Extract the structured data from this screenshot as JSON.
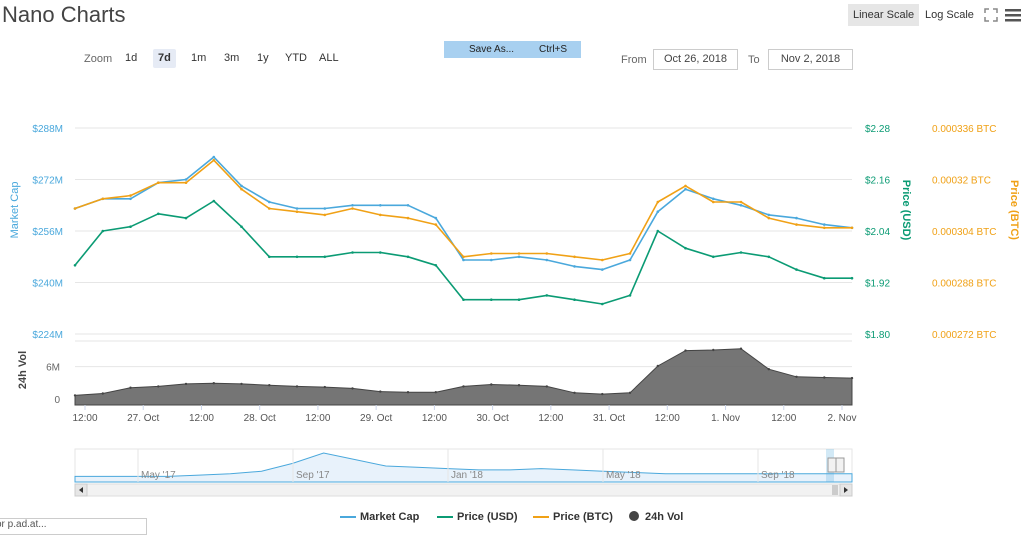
{
  "header": {
    "title": "Nano Charts",
    "linear_scale": "Linear Scale",
    "log_scale": "Log Scale",
    "fullscreen_icon": "fullscreen-icon",
    "menu_icon": "hamburger-menu-icon"
  },
  "toolbar": {
    "zoom_label": "Zoom",
    "zoom_options": [
      "1d",
      "7d",
      "1m",
      "3m",
      "1y",
      "YTD",
      "ALL"
    ],
    "active_zoom": "7d",
    "save_as": "Save As...",
    "save_shortcut": "Ctrl+S",
    "from_label": "From",
    "from_value": "Oct 26, 2018",
    "to_label": "To",
    "to_value": "Nov 2, 2018"
  },
  "colors": {
    "market_cap": "#4aa8dc",
    "price_usd": "#0b9b74",
    "price_btc": "#f0a116",
    "volume": "#555555"
  },
  "chart_data": {
    "type": "line",
    "title": "Nano Charts",
    "x_tick_labels": [
      "12:00",
      "27. Oct",
      "12:00",
      "28. Oct",
      "12:00",
      "29. Oct",
      "12:00",
      "30. Oct",
      "12:00",
      "31. Oct",
      "12:00",
      "1. Nov",
      "12:00",
      "2. Nov"
    ],
    "left_axis": {
      "label": "Market Cap",
      "ticks": [
        "$224M",
        "$240M",
        "$256M",
        "$272M",
        "$288M"
      ],
      "range": [
        224,
        288
      ]
    },
    "right_axis_usd": {
      "label": "Price (USD)",
      "ticks": [
        "$1.80",
        "$1.92",
        "$2.04",
        "$2.16",
        "$2.28"
      ],
      "range": [
        1.8,
        2.28
      ]
    },
    "right_axis_btc": {
      "label": "Price (BTC)",
      "ticks": [
        "0.000272 BTC",
        "0.000288 BTC",
        "0.000304 BTC",
        "0.00032 BTC",
        "0.000336 BTC"
      ],
      "range": [
        0.000272,
        0.000336
      ]
    },
    "volume_axis": {
      "label": "24h Vol",
      "ticks": [
        "0",
        "6M"
      ]
    },
    "time_index": [
      0,
      0.5,
      1,
      1.5,
      2,
      2.5,
      3,
      3.5,
      4,
      4.5,
      5,
      5.5,
      6,
      6.5,
      7,
      7.5,
      8,
      8.5,
      9,
      9.5,
      10,
      10.5,
      11,
      11.5,
      12,
      12.5,
      13,
      13.5,
      14
    ],
    "series": [
      {
        "name": "Market Cap",
        "axis": "left",
        "values": [
          263,
          266,
          266,
          271,
          272,
          279,
          270,
          265,
          263,
          263,
          264,
          264,
          264,
          260,
          247,
          247,
          248,
          247,
          245,
          244,
          247,
          262,
          269,
          266,
          264,
          261,
          260,
          258,
          257
        ]
      },
      {
        "name": "Price (USD)",
        "axis": "usd",
        "values": [
          1.96,
          2.04,
          2.05,
          2.08,
          2.07,
          2.11,
          2.05,
          1.98,
          1.98,
          1.98,
          1.99,
          1.99,
          1.98,
          1.96,
          1.88,
          1.88,
          1.88,
          1.89,
          1.88,
          1.87,
          1.89,
          2.04,
          2.0,
          1.98,
          1.99,
          1.98,
          1.95,
          1.93,
          1.93
        ]
      },
      {
        "name": "Price (BTC)",
        "axis": "btc",
        "values": [
          0.000311,
          0.000314,
          0.000315,
          0.000319,
          0.000319,
          0.000326,
          0.000317,
          0.000311,
          0.00031,
          0.000309,
          0.000311,
          0.000309,
          0.000308,
          0.000306,
          0.000296,
          0.000297,
          0.000297,
          0.000297,
          0.000296,
          0.000295,
          0.000297,
          0.000313,
          0.000318,
          0.000313,
          0.000313,
          0.000308,
          0.000306,
          0.000305,
          0.000305
        ]
      },
      {
        "name": "24h Vol",
        "axis": "vol",
        "type": "area",
        "values": [
          1.5,
          1.8,
          2.7,
          2.9,
          3.3,
          3.4,
          3.3,
          3.1,
          2.9,
          2.8,
          2.6,
          2.1,
          2.0,
          2.0,
          2.9,
          3.2,
          3.1,
          2.9,
          1.9,
          1.7,
          1.9,
          6.1,
          8.5,
          8.6,
          8.8,
          5.6,
          4.4,
          4.3,
          4.2
        ]
      }
    ],
    "legend": [
      "Market Cap",
      "Price (USD)",
      "Price (BTC)",
      "24h Vol"
    ],
    "grid": true,
    "legend_position": "bottom"
  },
  "navigator": {
    "labels": [
      "May '17",
      "Sep '17",
      "Jan '18",
      "May '18",
      "Sep '18"
    ],
    "values": [
      0.1,
      0.1,
      0.1,
      0.1,
      0.15,
      0.2,
      0.3,
      0.6,
      1.0,
      0.75,
      0.5,
      0.45,
      0.4,
      0.35,
      0.35,
      0.4,
      0.35,
      0.3,
      0.25,
      0.2,
      0.2,
      0.2,
      0.2,
      0.2,
      0.2,
      0.2
    ]
  },
  "footer": {
    "input_text": "or p.ad.at..."
  }
}
